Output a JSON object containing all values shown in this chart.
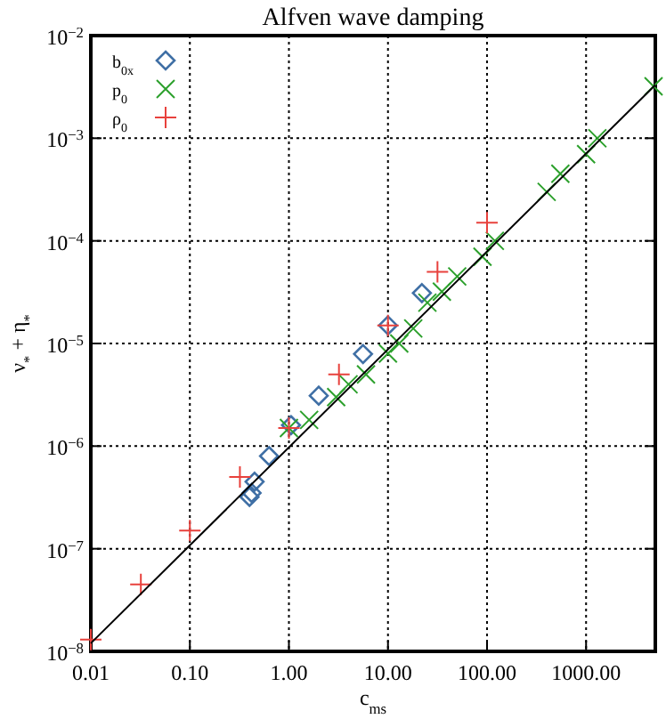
{
  "chart_data": {
    "type": "scatter",
    "title": "Alfven wave damping",
    "xlabel": "c$_{ms}$",
    "ylabel": "ν$_{*}$ + η$_{*}$",
    "log": "xy",
    "grid": true,
    "legend": "top left",
    "xlim": [
      0.01,
      5000
    ],
    "ylim": [
      1e-08,
      0.01
    ],
    "xticks": [
      {
        "value": 0.01,
        "label": "0.01"
      },
      {
        "value": 0.1,
        "label": "0.10"
      },
      {
        "value": 1,
        "label": "1.00"
      },
      {
        "value": 10,
        "label": "10.00"
      },
      {
        "value": 100,
        "label": "100.00"
      },
      {
        "value": 1000,
        "label": "1000.00"
      }
    ],
    "yticks": [
      {
        "value": 1e-08,
        "label": "10$^{−8}$"
      },
      {
        "value": 1e-07,
        "label": "10$^{−7}$"
      },
      {
        "value": 1e-06,
        "label": "10$^{−6}$"
      },
      {
        "value": 1e-05,
        "label": "10$^{−5}$"
      },
      {
        "value": 0.0001,
        "label": "10$^{−4}$"
      },
      {
        "value": 0.001,
        "label": "10$^{−3}$"
      },
      {
        "value": 0.01,
        "label": "10$^{−2}$"
      }
    ],
    "series": [
      {
        "name": "b$_{0x}$",
        "color": "#3f6fa5",
        "marker": "diamond",
        "x": [
          0.4,
          0.42,
          0.45,
          0.63,
          1.05,
          2,
          5.6,
          10,
          22
        ],
        "values": [
          3.2e-07,
          3.5e-07,
          4.5e-07,
          8e-07,
          1.6e-06,
          3.1e-06,
          7.9e-06,
          1.5e-05,
          3.1e-05
        ]
      },
      {
        "name": "p$_{0}$",
        "color": "#2ca02c",
        "marker": "x",
        "x": [
          1,
          1.6,
          3,
          4,
          6,
          10,
          13,
          18,
          25,
          35,
          50,
          90,
          120,
          400,
          550,
          1000,
          1300,
          4800
        ],
        "values": [
          1.5e-06,
          1.8e-06,
          3e-06,
          4e-06,
          5e-06,
          8e-06,
          1e-05,
          1.4e-05,
          2.5e-05,
          3.2e-05,
          4.5e-05,
          7e-05,
          0.0001,
          0.0003,
          0.00045,
          0.0007,
          0.001,
          0.0032
        ]
      },
      {
        "name": "ρ$_{0}$",
        "color": "#e8413c",
        "marker": "cross",
        "x": [
          0.01,
          0.032,
          0.1,
          0.32,
          1,
          3.2,
          10,
          31.6,
          100
        ],
        "values": [
          1.3e-08,
          4.5e-08,
          1.5e-07,
          5e-07,
          1.5e-06,
          5e-06,
          1.5e-05,
          5e-05,
          0.00015
        ]
      },
      {
        "type": "line",
        "color": "#000000",
        "marker": "none",
        "x": [
          0.01,
          5000
        ],
        "values": [
          1.2e-08,
          0.0033
        ]
      }
    ]
  }
}
